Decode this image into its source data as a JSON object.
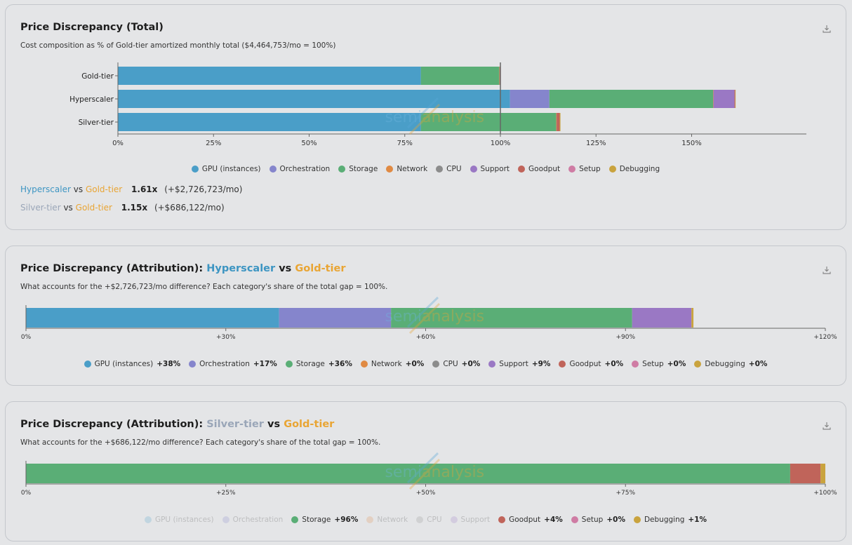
{
  "colors": {
    "GPU (instances)": "#4a9ec8",
    "Orchestration": "#8585cc",
    "Storage": "#5aae76",
    "Network": "#e08a43",
    "CPU": "#8c8c8c",
    "Support": "#9a78c4",
    "Goodput": "#c0645a",
    "Setup": "#cf7ca4",
    "Debugging": "#c9a33e"
  },
  "tier_colors": {
    "hyperscaler": "#3d95c2",
    "gold": "#e9a534",
    "silver": "#9aa6b8"
  },
  "watermark": {
    "left": "semi",
    "right": "analysis"
  },
  "total": {
    "title": "Price Discrepancy (Total)",
    "subtitle": "Cost composition as % of Gold-tier amortized monthly total ($4,464,753/mo = 100%)",
    "download_icon": "download-icon",
    "comparisons": [
      {
        "a": "Hyperscaler",
        "vs": "vs",
        "b": "Gold-tier",
        "ratio": "1.61x",
        "diff": "(+$2,726,723/mo)"
      },
      {
        "a": "Silver-tier",
        "vs": "vs",
        "b": "Gold-tier",
        "ratio": "1.15x",
        "diff": "(+$686,122/mo)"
      }
    ],
    "legend": [
      "GPU (instances)",
      "Orchestration",
      "Storage",
      "Network",
      "CPU",
      "Support",
      "Goodput",
      "Setup",
      "Debugging"
    ]
  },
  "attr_hyper": {
    "title_prefix": "Price Discrepancy (Attribution):",
    "a": "Hyperscaler",
    "vs": "vs",
    "b": "Gold-tier",
    "subtitle": "What accounts for the +$2,726,723/mo difference? Each category's share of the total gap = 100%.",
    "legend": [
      {
        "name": "GPU (instances)",
        "value": "+38%"
      },
      {
        "name": "Orchestration",
        "value": "+17%"
      },
      {
        "name": "Storage",
        "value": "+36%"
      },
      {
        "name": "Network",
        "value": "+0%"
      },
      {
        "name": "CPU",
        "value": "+0%"
      },
      {
        "name": "Support",
        "value": "+9%"
      },
      {
        "name": "Goodput",
        "value": "+0%"
      },
      {
        "name": "Setup",
        "value": "+0%"
      },
      {
        "name": "Debugging",
        "value": "+0%"
      }
    ]
  },
  "attr_silver": {
    "title_prefix": "Price Discrepancy (Attribution):",
    "a": "Silver-tier",
    "vs": "vs",
    "b": "Gold-tier",
    "subtitle": "What accounts for the +$686,122/mo difference? Each category's share of the total gap = 100%.",
    "legend": [
      {
        "name": "GPU (instances)",
        "value": "",
        "dim": true
      },
      {
        "name": "Orchestration",
        "value": "",
        "dim": true
      },
      {
        "name": "Storage",
        "value": "+96%"
      },
      {
        "name": "Network",
        "value": "",
        "dim": true
      },
      {
        "name": "CPU",
        "value": "",
        "dim": true
      },
      {
        "name": "Support",
        "value": "",
        "dim": true
      },
      {
        "name": "Goodput",
        "value": "+4%"
      },
      {
        "name": "Setup",
        "value": "+0%"
      },
      {
        "name": "Debugging",
        "value": "+1%"
      }
    ]
  },
  "chart_data": [
    {
      "type": "bar",
      "orientation": "horizontal",
      "stacked": true,
      "categories": [
        "Gold-tier",
        "Hyperscaler",
        "Silver-tier"
      ],
      "series": [
        {
          "name": "GPU (instances)",
          "values": [
            79.2,
            102.5,
            79.2
          ]
        },
        {
          "name": "Orchestration",
          "values": [
            0,
            10.3,
            0
          ]
        },
        {
          "name": "Storage",
          "values": [
            20.5,
            42.8,
            35.4
          ]
        },
        {
          "name": "Network",
          "values": [
            0.1,
            0.1,
            0.1
          ]
        },
        {
          "name": "CPU",
          "values": [
            0,
            0,
            0
          ]
        },
        {
          "name": "Support",
          "values": [
            0,
            5.5,
            0
          ]
        },
        {
          "name": "Goodput",
          "values": [
            0.2,
            0.2,
            0.8
          ]
        },
        {
          "name": "Setup",
          "values": [
            0,
            0,
            0
          ]
        },
        {
          "name": "Debugging",
          "values": [
            0,
            0.1,
            0.2
          ]
        }
      ],
      "xlim": [
        0,
        180
      ],
      "xticks": [
        "0%",
        "25%",
        "50%",
        "75%",
        "100%",
        "125%",
        "150%"
      ],
      "reference_line": 100
    },
    {
      "type": "bar",
      "orientation": "horizontal",
      "stacked": true,
      "categories": [
        "Hyperscaler vs Gold-tier"
      ],
      "series": [
        {
          "name": "GPU (instances)",
          "values": [
            38
          ]
        },
        {
          "name": "Orchestration",
          "values": [
            16.8
          ]
        },
        {
          "name": "Storage",
          "values": [
            36.2
          ]
        },
        {
          "name": "Network",
          "values": [
            0
          ]
        },
        {
          "name": "CPU",
          "values": [
            0
          ]
        },
        {
          "name": "Support",
          "values": [
            8.9
          ]
        },
        {
          "name": "Goodput",
          "values": [
            0
          ]
        },
        {
          "name": "Setup",
          "values": [
            0
          ]
        },
        {
          "name": "Debugging",
          "values": [
            0.3
          ]
        }
      ],
      "xlim": [
        0,
        120
      ],
      "xticks": [
        "0%",
        "+30%",
        "+60%",
        "+90%",
        "+120%"
      ]
    },
    {
      "type": "bar",
      "orientation": "horizontal",
      "stacked": true,
      "categories": [
        "Silver-tier vs Gold-tier"
      ],
      "series": [
        {
          "name": "GPU (instances)",
          "values": [
            0
          ]
        },
        {
          "name": "Orchestration",
          "values": [
            0
          ]
        },
        {
          "name": "Storage",
          "values": [
            95.6
          ]
        },
        {
          "name": "Network",
          "values": [
            0
          ]
        },
        {
          "name": "CPU",
          "values": [
            0
          ]
        },
        {
          "name": "Support",
          "values": [
            0
          ]
        },
        {
          "name": "Goodput",
          "values": [
            3.8
          ]
        },
        {
          "name": "Setup",
          "values": [
            0
          ]
        },
        {
          "name": "Debugging",
          "values": [
            0.6
          ]
        }
      ],
      "xlim": [
        0,
        100
      ],
      "xticks": [
        "0%",
        "+25%",
        "+50%",
        "+75%",
        "+100%"
      ]
    }
  ]
}
